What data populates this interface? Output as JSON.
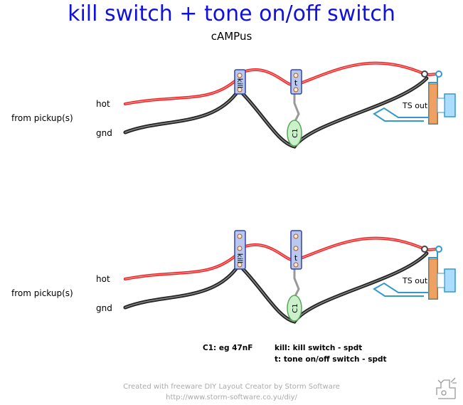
{
  "title": "kill switch + tone on/off switch",
  "subtitle": "cAMPus",
  "labels": {
    "hot": "hot",
    "gnd": "gnd",
    "from_pickup": "from pickup(s)",
    "kill_switch": "kill",
    "tone_switch": "t",
    "capacitor": "C1",
    "jack": "TS out"
  },
  "notes": {
    "c1": "C1: eg 47nF",
    "kill": "kill: kill switch - spdt",
    "tone": "t: tone on/off switch - spdt"
  },
  "footer": {
    "line1": "Created with freeware DIY Layout Creator by Storm Software",
    "line2": "http://www.storm-software.co.yu/diy/"
  },
  "colors": {
    "title": "#1111dd",
    "hot_wire": "#ee2222",
    "gnd_wire": "#333333",
    "switch_body": "#b8c8ee",
    "capacitor": "#ccf0cc",
    "jack_body": "#f0a060",
    "jack_lug": "#44aadd"
  }
}
